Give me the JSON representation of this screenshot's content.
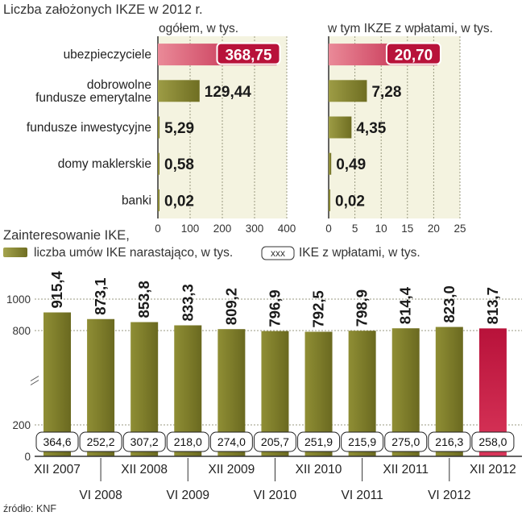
{
  "chart_data": [
    {
      "type": "bar",
      "orientation": "horizontal",
      "title": "Liczba założonych IKZE w 2012 r.",
      "subtitle": "ogółem, w tys.",
      "categories": [
        "ubezpieczyciele",
        "dobrowolne fundusze emerytalne",
        "fundusze inwestycyjne",
        "domy maklerskie",
        "banki"
      ],
      "category_lines": [
        [
          "ubezpieczyciele"
        ],
        [
          "dobrowolne",
          "fundusze emerytalne"
        ],
        [
          "fundusze inwestycyjne"
        ],
        [
          "domy maklerskie"
        ],
        [
          "banki"
        ]
      ],
      "values": [
        368.75,
        129.44,
        5.29,
        0.58,
        0.02
      ],
      "value_labels": [
        "368,75",
        "129,44",
        "5,29",
        "0,58",
        "0,02"
      ],
      "xlim": [
        0,
        400
      ],
      "ticks": [
        0,
        100,
        200,
        300,
        400
      ],
      "tick_labels": [
        "0",
        "100",
        "200",
        "300",
        "400"
      ],
      "highlight_index": 0
    },
    {
      "type": "bar",
      "orientation": "horizontal",
      "title": "w tym IKZE z wpłatami, w tys.",
      "categories": [
        "ubezpieczyciele",
        "dobrowolne fundusze emerytalne",
        "fundusze inwestycyjne",
        "domy maklerskie",
        "banki"
      ],
      "values": [
        20.7,
        7.28,
        4.35,
        0.49,
        0.02
      ],
      "value_labels": [
        "20,70",
        "7,28",
        "4,35",
        "0,49",
        "0,02"
      ],
      "xlim": [
        0,
        25
      ],
      "ticks": [
        0,
        5,
        10,
        15,
        20,
        25
      ],
      "tick_labels": [
        "0",
        "5",
        "10",
        "15",
        "20",
        "25"
      ],
      "highlight_index": 0
    },
    {
      "type": "bar",
      "orientation": "vertical",
      "title": "Zainteresowanie IKE,",
      "legend": {
        "series_label": "liczba umów IKE narastająco, w tys.",
        "box_sample": "xxx",
        "box_label": "IKE z wpłatami, w tys."
      },
      "categories": [
        "XII 2007",
        "VI 2008",
        "XII 2008",
        "VI 2009",
        "XII 2009",
        "VI 2010",
        "XII 2010",
        "VI 2011",
        "XII 2011",
        "VI 2012",
        "XII 2012"
      ],
      "series": [
        {
          "name": "liczba umów IKE narastająco, w tys.",
          "values": [
            915.4,
            873.1,
            853.8,
            833.3,
            809.2,
            796.9,
            792.5,
            798.9,
            814.4,
            823.0,
            813.7
          ],
          "labels": [
            "915,4",
            "873,1",
            "853,8",
            "833,3",
            "809,2",
            "796,9",
            "792,5",
            "798,9",
            "814,4",
            "823,0",
            "813,7"
          ]
        },
        {
          "name": "IKE z wpłatami, w tys.",
          "values": [
            364.6,
            252.2,
            307.2,
            218.0,
            274.0,
            205.7,
            251.9,
            215.9,
            275.0,
            216.3,
            258.0
          ],
          "labels": [
            "364,6",
            "252,2",
            "307,2",
            "218,0",
            "274,0",
            "205,7",
            "251,9",
            "215,9",
            "275,0",
            "216,3",
            "258,0"
          ]
        }
      ],
      "ylim": [
        0,
        1000
      ],
      "yticks": [
        0,
        200,
        800,
        1000
      ],
      "ytick_labels": [
        "0",
        "200",
        "800",
        "1000"
      ],
      "highlight_index": 10
    }
  ],
  "source": "źródło: KNF",
  "colors": {
    "olive": "#7d7c2a",
    "olive_light": "#b3b35e",
    "red": "#b8123a",
    "red_light": "#e2657a",
    "panel_bg": "#f4f3e0",
    "grid": "#9a9a80"
  }
}
